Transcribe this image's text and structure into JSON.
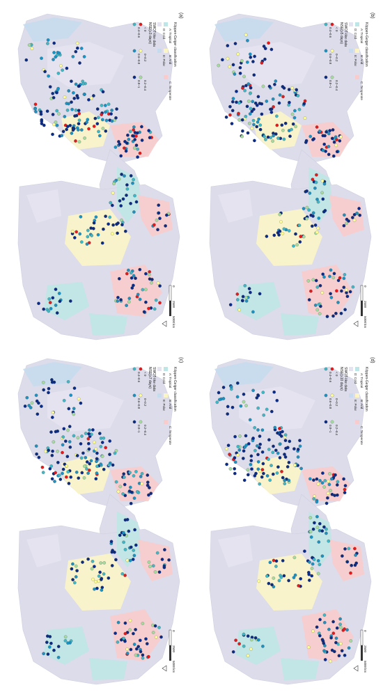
{
  "panels": [
    {
      "id": "a",
      "label": "(a)",
      "nse_title": "NSE(≥3 days)"
    },
    {
      "id": "b",
      "label": "(b)",
      "nse_title": "NSE(≥5 days)"
    },
    {
      "id": "c",
      "label": "(c)",
      "nse_title": "NSE(≥7 days)"
    },
    {
      "id": "d",
      "label": "(d)",
      "nse_title": "NSE(≥10 days)"
    }
  ],
  "koppen": {
    "title": "Köppen-Geiger classification",
    "classes": [
      {
        "label": "A: Tropical",
        "color": "#bfe6e6"
      },
      {
        "label": "B: Arid",
        "color": "#fbf5c6"
      },
      {
        "label": "C: Temperate",
        "color": "#f8cccc"
      },
      {
        "label": "D: Cold",
        "color": "#e6e3f1"
      },
      {
        "label": "E: Polar",
        "color": "#c7dbee"
      }
    ]
  },
  "swot": {
    "title": "SWOT-like data",
    "bins": [
      {
        "label": "< 0",
        "color": "#e41a1c"
      },
      {
        "label": "0~0.2",
        "color": "#ffff99"
      },
      {
        "label": "0.2~0.4",
        "color": "#a6dba0"
      },
      {
        "label": "0.4~0.6",
        "color": "#41b6c4"
      },
      {
        "label": "0.6~0.8",
        "color": "#1d91c0"
      },
      {
        "label": "0.8~1",
        "color": "#0c2c84"
      }
    ]
  },
  "scalebar": {
    "ticks": [
      "0",
      "2500",
      "5000 km"
    ]
  },
  "map_colors": {
    "ocean": "#ffffff",
    "land_base": "#dcdcea"
  },
  "icons": {
    "north": "north-arrow-icon"
  }
}
